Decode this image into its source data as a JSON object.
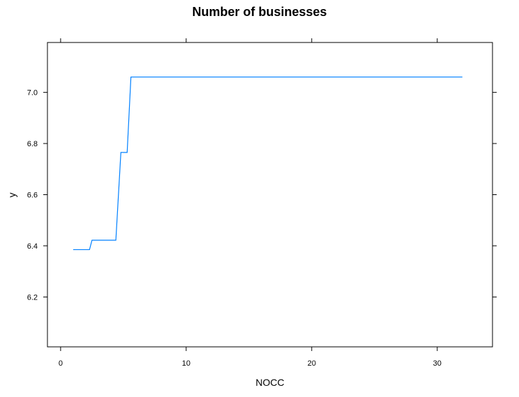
{
  "chart_data": {
    "type": "line",
    "title": "Number of businesses",
    "xlabel": "NOCC",
    "ylabel": "y",
    "xlim": [
      -1.05,
      34.4
    ],
    "ylim": [
      6.005,
      7.195
    ],
    "xticks": [
      0,
      10,
      20,
      30
    ],
    "xtick_labels": [
      "0",
      "10",
      "20",
      "30"
    ],
    "yticks": [
      6.2,
      6.4,
      6.6,
      6.8,
      7.0
    ],
    "ytick_labels": [
      "6.2",
      "6.4",
      "6.6",
      "6.8",
      "7.0"
    ],
    "grid": false,
    "step": true,
    "series": [
      {
        "color": "#0080ff",
        "x": [
          1,
          2.3,
          2.5,
          4.4,
          4.8,
          5.3,
          5.6,
          32
        ],
        "y": [
          6.385,
          6.385,
          6.422,
          6.422,
          6.765,
          6.765,
          7.06,
          7.06
        ]
      }
    ]
  }
}
